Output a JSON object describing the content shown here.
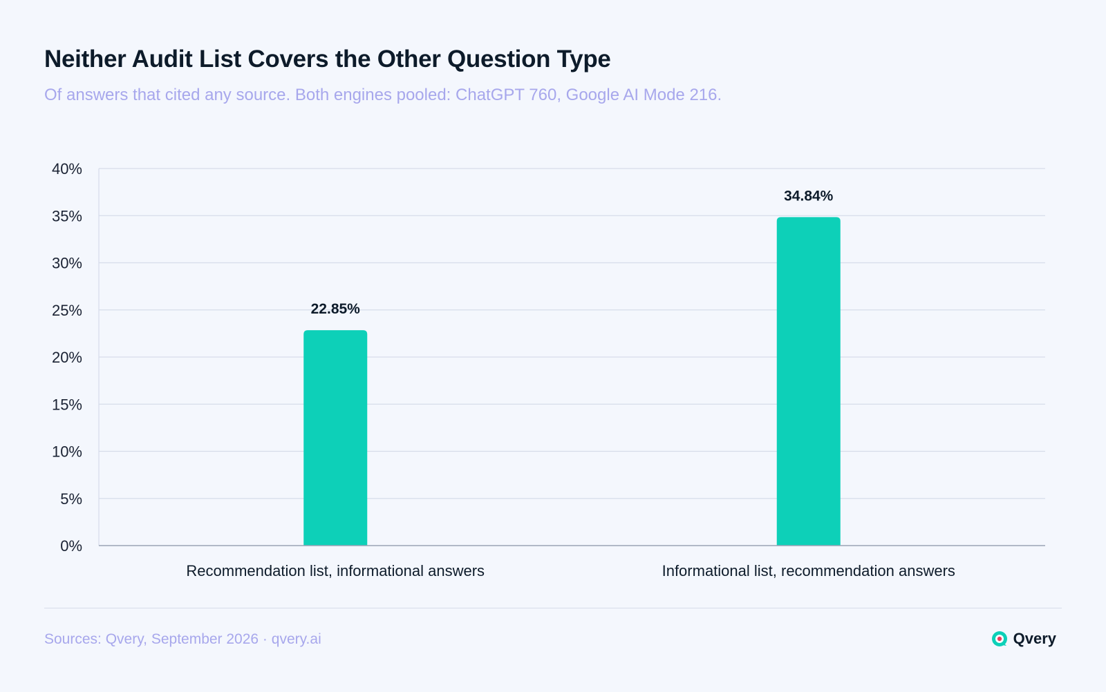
{
  "chart_data": {
    "type": "bar",
    "title": "Neither Audit List Covers the Other Question Type",
    "subtitle": "Of answers that cited any source. Both engines pooled: ChatGPT 760, Google AI Mode 216.",
    "categories": [
      "Recommendation list, informational answers",
      "Informational list, recommendation answers"
    ],
    "values": [
      22.85,
      34.84
    ],
    "data_labels": [
      "22.85%",
      "34.84%"
    ],
    "y_ticks": [
      "0%",
      "5%",
      "10%",
      "15%",
      "20%",
      "25%",
      "30%",
      "35%",
      "40%"
    ],
    "ylim": [
      0,
      40
    ],
    "grid": true,
    "xlabel": "",
    "ylabel": "",
    "bar_color": "#0dd0b8"
  },
  "footer": {
    "source": "Sources: Qvery, September 2026 · qvery.ai",
    "brand": "Qvery",
    "logo_icon": "qvery-logo-icon"
  },
  "colors": {
    "background": "#f4f7fd",
    "title": "#0d1b2a",
    "subtitle": "#a7a7ec",
    "grid": "#d6dcea",
    "axis": "#9aa3b5"
  }
}
